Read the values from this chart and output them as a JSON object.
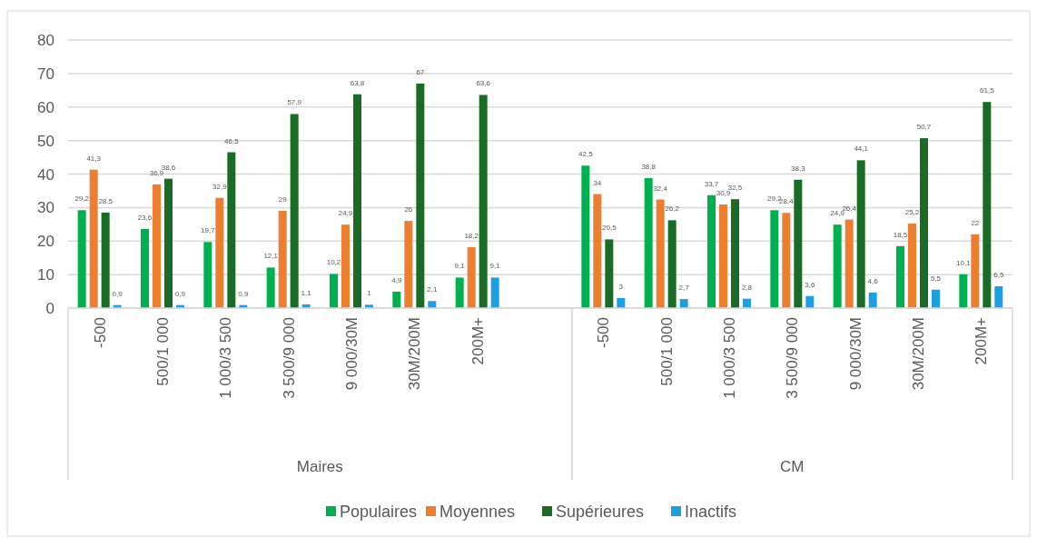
{
  "chart_data": {
    "type": "bar",
    "categories": [
      "-500",
      "500/1 000",
      "1 000/3 500",
      "3 500/9 000",
      "9 000/30M",
      "30M/200M",
      "200M+",
      null,
      "-500",
      "500/1 000",
      "1 000/3 500",
      "3 500/9 000",
      "9 000/30M",
      "30M/200M",
      "200M+"
    ],
    "series": [
      {
        "name": "Populaires",
        "color": "#00b050",
        "values": [
          29.2,
          23.6,
          19.7,
          12.1,
          10.2,
          4.9,
          9.1,
          null,
          42.5,
          38.8,
          33.7,
          29.2,
          24.9,
          18.5,
          10.1
        ],
        "value_labels": [
          "29,2",
          "23,6",
          "19,7",
          "12,1",
          "10,2",
          "4,9",
          "9,1",
          null,
          "42,5",
          "38,8",
          "33,7",
          "29,2",
          "24,9",
          "18,5",
          "10,1"
        ]
      },
      {
        "name": "Moyennes",
        "color": "#ed7d31",
        "values": [
          41.3,
          36.9,
          32.9,
          29,
          24.9,
          26,
          18.2,
          null,
          34,
          32.4,
          30.9,
          28.4,
          26.4,
          25.2,
          22
        ],
        "value_labels": [
          "41,3",
          "36,9",
          "32,9",
          "29",
          "24,9",
          "26",
          "18,2",
          null,
          "34",
          "32,4",
          "30,9",
          "28,4",
          "26,4",
          "25,2",
          "22"
        ]
      },
      {
        "name": "Supérieures",
        "color": "#1a6b26",
        "values": [
          28.5,
          38.6,
          46.5,
          57.9,
          63.8,
          67,
          63.6,
          null,
          20.5,
          26.2,
          32.5,
          38.3,
          44.1,
          50.7,
          61.5
        ],
        "value_labels": [
          "28,5",
          "38,6",
          "46,5",
          "57,9",
          "63,8",
          "67",
          "63,6",
          null,
          "20,5",
          "26,2",
          "32,5",
          "38,3",
          "44,1",
          "50,7",
          "61,5"
        ]
      },
      {
        "name": "Inactifs",
        "color": "#1ba1e2",
        "values": [
          0.9,
          0.9,
          0.9,
          1.1,
          1,
          2.1,
          9.1,
          null,
          3,
          2.7,
          2.8,
          3.6,
          4.6,
          5.5,
          6.5
        ],
        "value_labels": [
          "0,9",
          "0,9",
          "0,9",
          "1,1",
          "1",
          "2,1",
          "9,1",
          null,
          "3",
          "2,7",
          "2,8",
          "3,6",
          "4,6",
          "5,5",
          "6,5"
        ]
      }
    ],
    "annotations": [
      "Maires",
      "CM"
    ],
    "ylim": [
      0,
      80
    ],
    "yticks": [
      0,
      10,
      20,
      30,
      40,
      50,
      60,
      70,
      80
    ],
    "grid": "y",
    "legend": "bottom"
  }
}
